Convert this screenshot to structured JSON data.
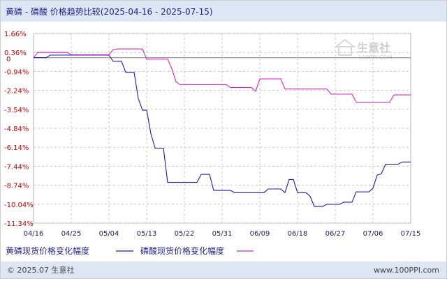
{
  "title": "黄磷 - 磷酸 价格趋势比较(2025-04-16 - 2025-07-15)",
  "footer": {
    "left": "© 2025.07 生意社",
    "right": "www.100PPI.com"
  },
  "watermark": {
    "name": "生意社",
    "url": "100PPI.COM"
  },
  "colors": {
    "series_1": "#1a1ab8",
    "series_2": "#e020c8",
    "grid": "#c8c8c8",
    "axis_labels": "#cc0000",
    "header_bg": "#dce6f4",
    "footer_bg": "#dde6f2",
    "zero_line": "#808080"
  },
  "chart_data": {
    "type": "line",
    "title": "黄磷 - 磷酸 价格趋势比较(2025-04-16 - 2025-07-15)",
    "xlabel": "",
    "ylabel": "",
    "x_ticks": [
      "04/16",
      "04/25",
      "05/04",
      "05/13",
      "05/22",
      "05/31",
      "06/09",
      "06/18",
      "06/27",
      "07/06",
      "07/15"
    ],
    "y_ticks": [
      "1.66%",
      "0.36%",
      "-0.94%",
      "-2.24%",
      "-3.54%",
      "-4.84%",
      "-6.14%",
      "-7.44%",
      "-8.74%",
      "-10.04%",
      "-11.34%"
    ],
    "ylim": [
      -11.34,
      1.66
    ],
    "grid": true,
    "legend_position": "bottom-left",
    "series": [
      {
        "name": "黄磷现货价格变化幅度",
        "color": "#1a1ab8",
        "points": [
          [
            "04/16",
            0.0
          ],
          [
            "04/19",
            0.0
          ],
          [
            "04/20",
            0.18
          ],
          [
            "04/26",
            0.18
          ],
          [
            "05/01",
            0.18
          ],
          [
            "05/04",
            0.18
          ],
          [
            "05/05",
            -0.25
          ],
          [
            "05/07",
            -0.25
          ],
          [
            "05/08",
            -1.0
          ],
          [
            "05/10",
            -1.0
          ],
          [
            "05/11",
            -2.8
          ],
          [
            "05/12",
            -3.6
          ],
          [
            "05/13",
            -3.6
          ],
          [
            "05/14",
            -5.2
          ],
          [
            "05/15",
            -6.2
          ],
          [
            "05/17",
            -6.2
          ],
          [
            "05/18",
            -8.55
          ],
          [
            "05/25",
            -8.55
          ],
          [
            "05/26",
            -8.0
          ],
          [
            "05/28",
            -8.0
          ],
          [
            "05/29",
            -9.1
          ],
          [
            "06/02",
            -9.1
          ],
          [
            "06/03",
            -9.25
          ],
          [
            "06/10",
            -9.25
          ],
          [
            "06/11",
            -9.0
          ],
          [
            "06/14",
            -9.0
          ],
          [
            "06/15",
            -9.25
          ],
          [
            "06/16",
            -8.35
          ],
          [
            "06/17",
            -8.35
          ],
          [
            "06/18",
            -9.25
          ],
          [
            "06/20",
            -9.25
          ],
          [
            "06/21",
            -9.5
          ],
          [
            "06/22",
            -10.2
          ],
          [
            "06/24",
            -10.2
          ],
          [
            "06/25",
            -10.05
          ],
          [
            "06/28",
            -10.05
          ],
          [
            "06/29",
            -9.9
          ],
          [
            "07/01",
            -9.9
          ],
          [
            "07/02",
            -9.2
          ],
          [
            "07/05",
            -9.2
          ],
          [
            "07/06",
            -8.95
          ],
          [
            "07/07",
            -8.05
          ],
          [
            "07/08",
            -7.95
          ],
          [
            "07/09",
            -7.3
          ],
          [
            "07/12",
            -7.3
          ],
          [
            "07/13",
            -7.15
          ],
          [
            "07/15",
            -7.15
          ]
        ]
      },
      {
        "name": "磷酸现货价格变化幅度",
        "color": "#e020c8",
        "points": [
          [
            "04/16",
            0.0
          ],
          [
            "04/17",
            0.36
          ],
          [
            "04/24",
            0.36
          ],
          [
            "04/25",
            0.2
          ],
          [
            "05/04",
            0.2
          ],
          [
            "05/05",
            0.55
          ],
          [
            "05/06",
            0.6
          ],
          [
            "05/12",
            0.6
          ],
          [
            "05/13",
            -0.1
          ],
          [
            "05/18",
            -0.1
          ],
          [
            "05/19",
            -0.75
          ],
          [
            "05/20",
            -1.65
          ],
          [
            "05/21",
            -1.85
          ],
          [
            "06/01",
            -1.85
          ],
          [
            "06/02",
            -2.05
          ],
          [
            "06/07",
            -2.05
          ],
          [
            "06/08",
            -2.3
          ],
          [
            "06/09",
            -1.45
          ],
          [
            "06/14",
            -1.45
          ],
          [
            "06/15",
            -2.15
          ],
          [
            "06/25",
            -2.15
          ],
          [
            "06/26",
            -2.5
          ],
          [
            "07/01",
            -2.5
          ],
          [
            "07/02",
            -3.05
          ],
          [
            "07/10",
            -3.05
          ],
          [
            "07/11",
            -2.55
          ],
          [
            "07/15",
            -2.55
          ]
        ]
      }
    ]
  }
}
